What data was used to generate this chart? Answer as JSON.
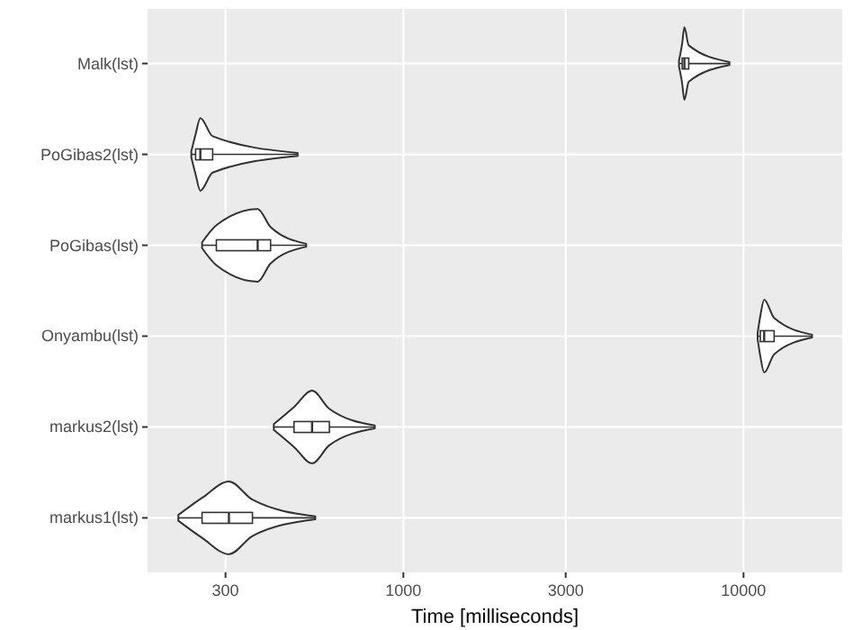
{
  "chart_data": {
    "type": "box",
    "orientation": "horizontal",
    "log": "x",
    "xlabel": "Time [milliseconds]",
    "categories": [
      "Malk(lst)",
      "PoGibas2(lst)",
      "PoGibas(lst)",
      "Onyambu(lst)",
      "markus2(lst)",
      "markus1(lst)"
    ],
    "boxes": [
      {
        "low": 6460,
        "q1": 6600,
        "median": 6700,
        "q3": 6900,
        "high": 9090
      },
      {
        "low": 238,
        "q1": 245,
        "median": 253,
        "q3": 275,
        "high": 489
      },
      {
        "low": 256,
        "q1": 282,
        "median": 373,
        "q3": 407,
        "high": 518
      },
      {
        "low": 11000,
        "q1": 11200,
        "median": 11500,
        "q3": 12300,
        "high": 15900
      },
      {
        "low": 416,
        "q1": 477,
        "median": 539,
        "q3": 606,
        "high": 824
      },
      {
        "low": 218,
        "q1": 256,
        "median": 307,
        "q3": 360,
        "high": 551
      }
    ],
    "xlim": [
      177,
      19500
    ],
    "xticks": [
      300,
      1000,
      3000,
      10000
    ],
    "grid": true
  }
}
